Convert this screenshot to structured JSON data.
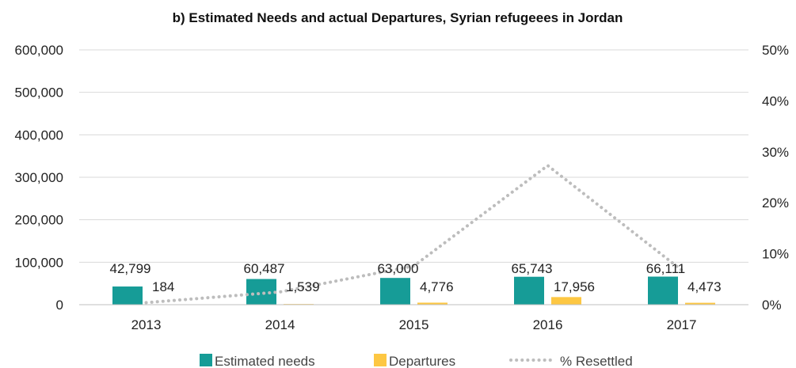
{
  "chart_data": {
    "type": "bar",
    "title": "b) Estimated Needs and actual Departures, Syrian refugeees in Jordan",
    "categories": [
      "2013",
      "2014",
      "2015",
      "2016",
      "2017"
    ],
    "series": [
      {
        "name": "Estimated needs",
        "kind": "bar",
        "axis": "left",
        "color": "#169c97",
        "values": [
          42799,
          60487,
          63000,
          65743,
          66111
        ],
        "labels": [
          "42,799",
          "60,487",
          "63,000",
          "65,743",
          "66,111"
        ]
      },
      {
        "name": "Departures",
        "kind": "bar",
        "axis": "left",
        "color": "#fdc743",
        "values": [
          184,
          1539,
          4776,
          17956,
          4473
        ],
        "labels": [
          "184",
          "1,539",
          "4,776",
          "17,956",
          "4,473"
        ]
      },
      {
        "name": "% Resettled",
        "kind": "line",
        "style": "dotted",
        "axis": "right",
        "color": "#bdbdbd",
        "values": [
          0.4,
          2.5,
          7.6,
          27.3,
          6.8
        ]
      }
    ],
    "y_left": {
      "ylim": [
        0,
        600000
      ],
      "ticks": [
        "0",
        "100,000",
        "200,000",
        "300,000",
        "400,000",
        "500,000",
        "600,000"
      ]
    },
    "y_right": {
      "ylim": [
        0,
        50
      ],
      "ticks": [
        "0%",
        "10%",
        "20%",
        "30%",
        "40%",
        "50%"
      ]
    },
    "grid": true,
    "legend_position": "bottom"
  }
}
